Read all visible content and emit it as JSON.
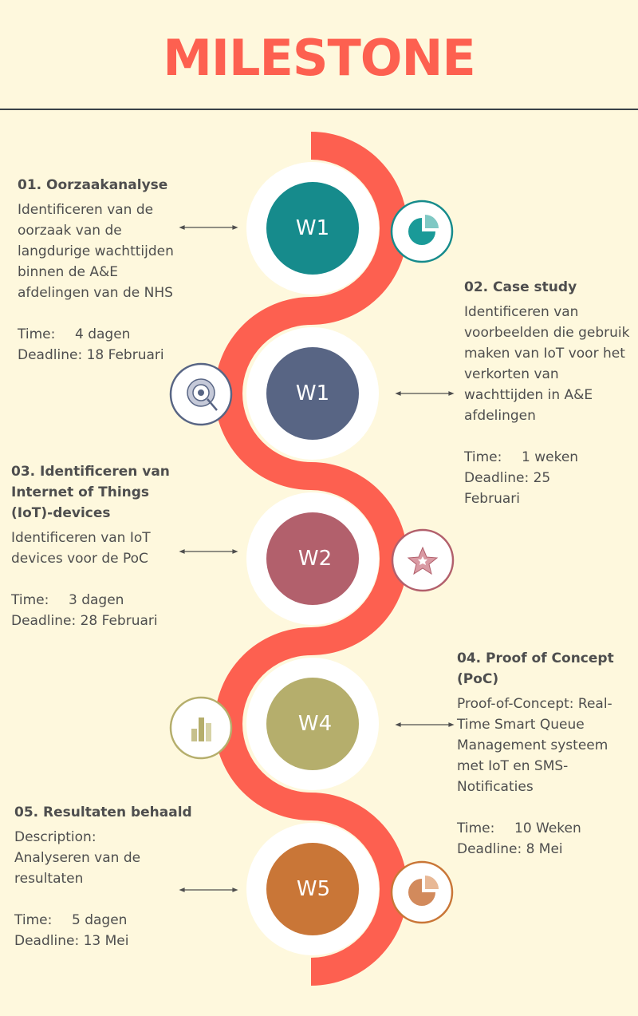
{
  "title": "MILESTONE",
  "milestones": [
    {
      "week": "W1",
      "heading": "01. Oorzaakanalyse",
      "description": "Identificeren van de oorzaak van de langdurige wachttijden binnen de A&E afdelingen van de NHS",
      "time_label": "Time:",
      "time_value": "4 dagen",
      "deadline": "Deadline: 18 Februari",
      "node_color": "#168b8c",
      "icon": "pie-chart-icon"
    },
    {
      "week": "W1",
      "heading": "02. Case study",
      "description": "Identificeren van voorbeelden die gebruik maken van IoT voor het verkorten van wachttijden in A&E afdelingen",
      "time_label": "Time:",
      "time_value": "1 weken",
      "deadline": "Deadline: 25 Februari",
      "node_color": "#586584",
      "icon": "target-icon"
    },
    {
      "week": "W2",
      "heading": "03. Identificeren van Internet of Things (IoT)-devices",
      "description": "Identificeren van IoT devices voor de PoC",
      "time_label": "Time:",
      "time_value": "3 dagen",
      "deadline": "Deadline: 28 Februari",
      "node_color": "#b2606c",
      "icon": "star-icon"
    },
    {
      "week": "W4",
      "heading": "04. Proof of Concept (PoC)",
      "description": "Proof-of-Concept: Real-Time Smart Queue Management systeem met IoT en SMS-Notificaties",
      "time_label": "Time:",
      "time_value": "10 Weken",
      "deadline": "Deadline: 8 Mei",
      "node_color": "#b5ae6c",
      "icon": "bar-chart-icon"
    },
    {
      "week": "W5",
      "heading": "05. Resultaten behaald",
      "description": "Description: Analyseren van de resultaten",
      "time_label": "Time:",
      "time_value": "5 dagen",
      "deadline": "Deadline: 13 Mei",
      "node_color": "#c97637",
      "icon": "pie-chart-icon"
    }
  ],
  "colors": {
    "background": "#fef8dd",
    "title": "#fd6050",
    "ribbon": "#fd6050",
    "text": "#4e4e4e"
  }
}
